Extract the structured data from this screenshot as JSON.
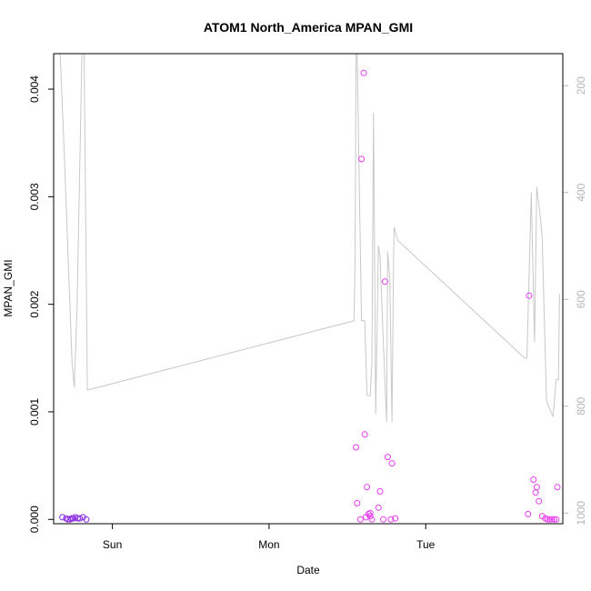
{
  "chart_data": {
    "type": "scatter",
    "title": "ATOM1 North_America MPAN_GMI",
    "xlabel": "Date",
    "ylabel": "MPAN_GMI",
    "x_ticks": [
      "Sun",
      "Mon",
      "Tue"
    ],
    "xlim": [
      "Sat 15:00",
      "Tue 21:00"
    ],
    "ylim_left": [
      -4e-05,
      0.00433
    ],
    "y_ticks_left": [
      "0.000",
      "0.001",
      "0.002",
      "0.003",
      "0.004"
    ],
    "y_ticks_left_values": [
      0,
      0.001,
      0.002,
      0.003,
      0.004
    ],
    "ylim_right": [
      1020,
      140
    ],
    "right_axis_reversed": true,
    "y_ticks_right": [
      "200",
      "400",
      "600",
      "800",
      "1000"
    ],
    "y_ticks_right_values": [
      200,
      400,
      600,
      800,
      1000
    ],
    "grid": false,
    "legend": "none",
    "colors": {
      "points_a": "#8a2be2",
      "points_b": "#e63cf0",
      "line": "#c8c8c8",
      "frame": "#000000"
    },
    "series": [
      {
        "axis": "left",
        "kind": "points",
        "color": "#8a2be2",
        "x": [
          "Sat 16:20",
          "Sat 16:55",
          "Sat 17:10",
          "Sat 17:30",
          "Sat 17:45",
          "Sat 18:00",
          "Sat 18:20",
          "Sat 18:40",
          "Sat 19:00",
          "Sat 19:30",
          "Sat 20:00"
        ],
        "y": [
          2e-05,
          1e-05,
          0.0,
          0.0,
          1e-05,
          1e-05,
          2e-05,
          1e-05,
          1e-05,
          2e-05,
          0.0
        ]
      },
      {
        "axis": "left",
        "kind": "points",
        "color": "#e63cf0",
        "x": [
          "Mon 13:20",
          "Mon 13:30",
          "Mon 14:00",
          "Mon 14:10",
          "Mon 14:30",
          "Mon 14:40",
          "Mon 14:50",
          "Mon 15:00",
          "Mon 15:15",
          "Mon 15:30",
          "Mon 15:30",
          "Mon 15:45",
          "Mon 16:45",
          "Mon 17:00",
          "Mon 17:30",
          "Mon 17:45",
          "Mon 18:10",
          "Mon 18:40",
          "Mon 18:50",
          "Mon 19:20",
          "Tue 15:40",
          "Tue 15:50",
          "Tue 16:30",
          "Tue 16:50",
          "Tue 17:00",
          "Tue 17:20",
          "Tue 17:50",
          "Tue 18:20",
          "Tue 18:40",
          "Tue 19:00",
          "Tue 19:20",
          "Tue 19:40",
          "Tue 20:00",
          "Tue 20:10"
        ],
        "y": [
          0.00067,
          0.00015,
          0.0,
          0.00335,
          0.00415,
          0.00079,
          2e-05,
          0.0003,
          5e-05,
          3e-05,
          6e-05,
          0.0,
          0.00011,
          0.00026,
          0.0,
          0.00221,
          0.00058,
          0.0,
          0.00052,
          1e-05,
          5e-05,
          0.00208,
          0.00037,
          0.00025,
          0.0003,
          0.00017,
          3e-05,
          1e-05,
          0.0,
          0.0,
          0.0,
          0.0,
          0.0,
          0.0003
        ]
      },
      {
        "axis": "right",
        "kind": "line",
        "color": "#c8c8c8",
        "x": [
          "Sat 16:00",
          "Sat 16:40",
          "Sat 17:50",
          "Sat 18:10",
          "Sat 18:35",
          "Sat 19:20",
          "Sat 19:40",
          "Sat 20:10",
          "Mon 13:00",
          "Mon 13:10",
          "Mon 13:20",
          "Mon 13:30",
          "Mon 14:10",
          "Mon 14:40",
          "Mon 15:00",
          "Mon 15:30",
          "Mon 15:45",
          "Mon 16:00",
          "Mon 16:20",
          "Mon 16:45",
          "Mon 17:00",
          "Mon 17:30",
          "Mon 18:00",
          "Mon 18:10",
          "Mon 18:30",
          "Mon 18:50",
          "Mon 19:05",
          "Mon 19:10",
          "Mon 19:30",
          "Mon 19:45",
          "Tue 15:10",
          "Tue 15:30",
          "Tue 16:10",
          "Tue 16:40",
          "Tue 17:00",
          "Tue 17:30",
          "Tue 17:50",
          "Tue 18:30",
          "Tue 19:30",
          "Tue 20:00",
          "Tue 20:20",
          "Tue 20:30"
        ],
        "y": [
          140,
          340,
          720,
          765,
          620,
          140,
          140,
          770,
          640,
          530,
          140,
          140,
          640,
          640,
          780,
          780,
          720,
          250,
          815,
          500,
          520,
          680,
          830,
          510,
          560,
          830,
          520,
          465,
          480,
          490,
          710,
          710,
          400,
          680,
          390,
          440,
          485,
          790,
          820,
          750,
          750,
          590
        ]
      }
    ]
  }
}
